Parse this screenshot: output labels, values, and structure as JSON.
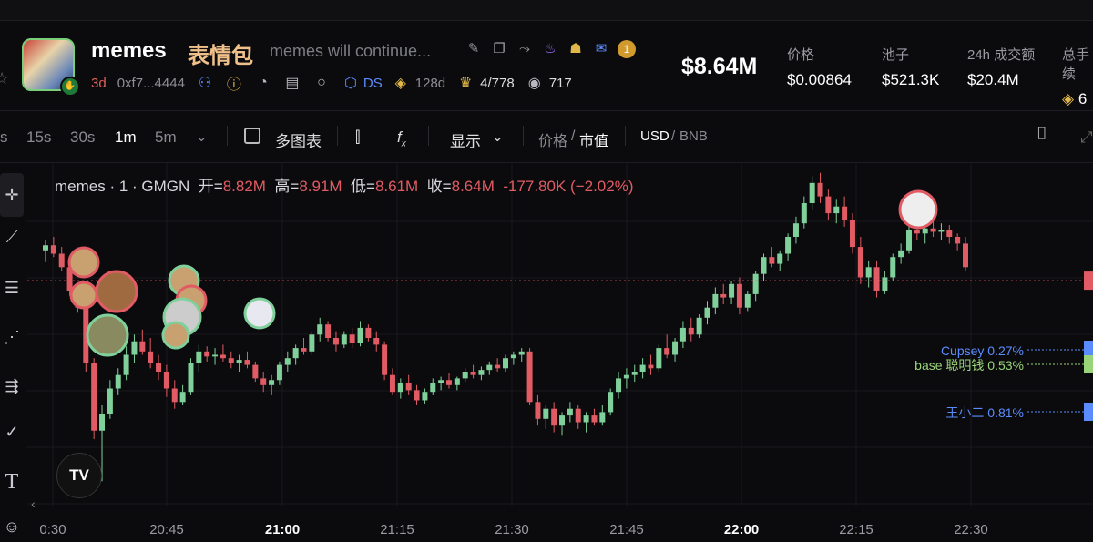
{
  "header": {
    "name": "memes",
    "cn_name": "表情包",
    "description": "memes will continue...",
    "age": "3d",
    "address": "0xf7...4444",
    "ds_label": "DS",
    "days": "128d",
    "rank": "4/778",
    "views": "717",
    "badge_count": "1",
    "market_cap": "$8.64M",
    "stats": [
      {
        "label": "价格",
        "value": "$0.00864"
      },
      {
        "label": "池子",
        "value": "$521.3K"
      },
      {
        "label": "24h 成交额",
        "value": "$20.4M"
      },
      {
        "label": "总手续",
        "value": "6"
      }
    ]
  },
  "toolbar": {
    "intervals": [
      "s",
      "15s",
      "30s",
      "1m",
      "5m"
    ],
    "active_interval": "1m",
    "multi_chart": "多图表",
    "fx": "f",
    "display": "显示",
    "price_label": "价格",
    "slash1": "/",
    "mcap_label": "市值",
    "currency": "USD",
    "slash2": "/",
    "currency_alt": "BNB"
  },
  "legend": {
    "symbol": "memes · 1 · GMGN",
    "open_label": "开=",
    "open": "8.82M",
    "high_label": "高=",
    "high": "8.91M",
    "low_label": "低=",
    "low": "8.61M",
    "close_label": "收=",
    "close": "8.64M",
    "change": "-177.80K (−2.02%)"
  },
  "right_labels": [
    {
      "text": "Cupsey 0.27%",
      "color": "#5b8cff"
    },
    {
      "text": "base 聪明钱 0.53%",
      "color": "#9ad47a"
    },
    {
      "text": "王小二 0.81%",
      "color": "#5b8cff"
    }
  ],
  "tv_logo": "TV",
  "chart_data": {
    "type": "candlestick",
    "x_ticks": [
      "0:30",
      "20:45",
      "21:00",
      "21:15",
      "21:30",
      "21:45",
      "22:00",
      "22:15",
      "22:30"
    ],
    "bold_ticks": [
      "21:00",
      "22:00"
    ],
    "y_range": [
      7.3,
      9.3
    ],
    "colors": {
      "up": "#7fd09a",
      "down": "#e05b63"
    },
    "candles": [
      [
        8.82,
        8.88,
        8.75,
        8.85
      ],
      [
        8.85,
        8.9,
        8.78,
        8.8
      ],
      [
        8.8,
        8.84,
        8.7,
        8.72
      ],
      [
        8.72,
        8.76,
        8.55,
        8.58
      ],
      [
        8.58,
        8.62,
        8.45,
        8.48
      ],
      [
        8.48,
        8.52,
        8.1,
        8.15
      ],
      [
        8.15,
        8.18,
        7.7,
        7.75
      ],
      [
        7.75,
        7.9,
        7.45,
        7.85
      ],
      [
        7.85,
        8.05,
        7.82,
        8.0
      ],
      [
        8.0,
        8.12,
        7.96,
        8.08
      ],
      [
        8.08,
        8.25,
        8.05,
        8.2
      ],
      [
        8.2,
        8.32,
        8.15,
        8.28
      ],
      [
        8.28,
        8.35,
        8.2,
        8.22
      ],
      [
        8.22,
        8.3,
        8.12,
        8.15
      ],
      [
        8.15,
        8.2,
        8.05,
        8.1
      ],
      [
        8.1,
        8.14,
        7.95,
        8.0
      ],
      [
        8.0,
        8.05,
        7.88,
        7.92
      ],
      [
        7.92,
        8.02,
        7.9,
        7.98
      ],
      [
        7.98,
        8.18,
        7.96,
        8.15
      ],
      [
        8.15,
        8.26,
        8.1,
        8.22
      ],
      [
        8.22,
        8.25,
        8.16,
        8.19
      ],
      [
        8.19,
        8.24,
        8.14,
        8.2
      ],
      [
        8.2,
        8.26,
        8.16,
        8.18
      ],
      [
        8.18,
        8.22,
        8.12,
        8.15
      ],
      [
        8.15,
        8.2,
        8.1,
        8.17
      ],
      [
        8.17,
        8.22,
        8.12,
        8.14
      ],
      [
        8.14,
        8.16,
        8.04,
        8.06
      ],
      [
        8.06,
        8.1,
        7.98,
        8.02
      ],
      [
        8.02,
        8.08,
        7.96,
        8.05
      ],
      [
        8.05,
        8.16,
        8.02,
        8.14
      ],
      [
        8.14,
        8.22,
        8.1,
        8.18
      ],
      [
        8.18,
        8.26,
        8.14,
        8.24
      ],
      [
        8.24,
        8.3,
        8.2,
        8.22
      ],
      [
        8.22,
        8.34,
        8.2,
        8.32
      ],
      [
        8.32,
        8.42,
        8.28,
        8.38
      ],
      [
        8.38,
        8.4,
        8.28,
        8.3
      ],
      [
        8.3,
        8.34,
        8.22,
        8.26
      ],
      [
        8.26,
        8.34,
        8.24,
        8.32
      ],
      [
        8.32,
        8.36,
        8.24,
        8.27
      ],
      [
        8.27,
        8.4,
        8.25,
        8.36
      ],
      [
        8.36,
        8.38,
        8.28,
        8.3
      ],
      [
        8.3,
        8.34,
        8.22,
        8.26
      ],
      [
        8.26,
        8.28,
        8.05,
        8.08
      ],
      [
        8.08,
        8.12,
        7.96,
        7.98
      ],
      [
        7.98,
        8.06,
        7.94,
        8.03
      ],
      [
        8.03,
        8.08,
        7.96,
        7.99
      ],
      [
        7.99,
        8.02,
        7.9,
        7.93
      ],
      [
        7.93,
        8.0,
        7.91,
        7.98
      ],
      [
        7.98,
        8.06,
        7.96,
        8.03
      ],
      [
        8.03,
        8.07,
        7.99,
        8.05
      ],
      [
        8.05,
        8.09,
        8.0,
        8.02
      ],
      [
        8.02,
        8.07,
        7.99,
        8.06
      ],
      [
        8.06,
        8.12,
        8.04,
        8.1
      ],
      [
        8.1,
        8.14,
        8.06,
        8.08
      ],
      [
        8.08,
        8.13,
        8.05,
        8.11
      ],
      [
        8.11,
        8.16,
        8.08,
        8.14
      ],
      [
        8.14,
        8.18,
        8.1,
        8.12
      ],
      [
        8.12,
        8.2,
        8.1,
        8.18
      ],
      [
        8.18,
        8.22,
        8.14,
        8.2
      ],
      [
        8.2,
        8.24,
        8.16,
        8.22
      ],
      [
        8.22,
        8.24,
        7.9,
        7.92
      ],
      [
        7.92,
        7.96,
        7.78,
        7.82
      ],
      [
        7.82,
        7.9,
        7.76,
        7.88
      ],
      [
        7.88,
        7.92,
        7.74,
        7.78
      ],
      [
        7.78,
        7.86,
        7.72,
        7.84
      ],
      [
        7.84,
        7.92,
        7.8,
        7.88
      ],
      [
        7.88,
        7.9,
        7.76,
        7.8
      ],
      [
        7.8,
        7.86,
        7.74,
        7.84
      ],
      [
        7.84,
        7.88,
        7.78,
        7.8
      ],
      [
        7.8,
        7.9,
        7.78,
        7.86
      ],
      [
        7.86,
        8.0,
        7.84,
        7.98
      ],
      [
        7.98,
        8.1,
        7.94,
        8.06
      ],
      [
        8.06,
        8.12,
        8.0,
        8.08
      ],
      [
        8.08,
        8.14,
        8.04,
        8.1
      ],
      [
        8.1,
        8.18,
        8.06,
        8.14
      ],
      [
        8.14,
        8.2,
        8.08,
        8.12
      ],
      [
        8.12,
        8.26,
        8.1,
        8.24
      ],
      [
        8.24,
        8.32,
        8.18,
        8.2
      ],
      [
        8.2,
        8.3,
        8.16,
        8.28
      ],
      [
        8.28,
        8.4,
        8.24,
        8.36
      ],
      [
        8.36,
        8.42,
        8.28,
        8.32
      ],
      [
        8.32,
        8.44,
        8.3,
        8.42
      ],
      [
        8.42,
        8.52,
        8.38,
        8.48
      ],
      [
        8.48,
        8.6,
        8.44,
        8.56
      ],
      [
        8.56,
        8.62,
        8.5,
        8.54
      ],
      [
        8.54,
        8.64,
        8.5,
        8.62
      ],
      [
        8.62,
        8.66,
        8.44,
        8.48
      ],
      [
        8.48,
        8.58,
        8.46,
        8.56
      ],
      [
        8.56,
        8.7,
        8.52,
        8.68
      ],
      [
        8.68,
        8.8,
        8.64,
        8.78
      ],
      [
        8.78,
        8.84,
        8.72,
        8.74
      ],
      [
        8.74,
        8.82,
        8.7,
        8.8
      ],
      [
        8.8,
        8.92,
        8.76,
        8.9
      ],
      [
        8.9,
        9.02,
        8.86,
        8.98
      ],
      [
        8.98,
        9.14,
        8.95,
        9.1
      ],
      [
        9.1,
        9.26,
        9.06,
        9.22
      ],
      [
        9.22,
        9.28,
        9.1,
        9.14
      ],
      [
        9.14,
        9.18,
        9.0,
        9.04
      ],
      [
        9.04,
        9.12,
        8.98,
        9.08
      ],
      [
        9.08,
        9.14,
        8.96,
        9.0
      ],
      [
        9.0,
        9.04,
        8.8,
        8.84
      ],
      [
        8.84,
        8.9,
        8.62,
        8.66
      ],
      [
        8.66,
        8.76,
        8.6,
        8.72
      ],
      [
        8.72,
        8.76,
        8.54,
        8.58
      ],
      [
        8.58,
        8.7,
        8.56,
        8.66
      ],
      [
        8.66,
        8.8,
        8.64,
        8.78
      ],
      [
        8.78,
        8.86,
        8.74,
        8.82
      ],
      [
        8.82,
        8.96,
        8.8,
        8.94
      ],
      [
        8.94,
        9.0,
        8.88,
        8.92
      ],
      [
        8.92,
        8.98,
        8.86,
        8.95
      ],
      [
        8.95,
        9.0,
        8.9,
        8.93
      ],
      [
        8.93,
        8.98,
        8.88,
        8.94
      ],
      [
        8.94,
        8.97,
        8.86,
        8.9
      ],
      [
        8.9,
        8.92,
        8.82,
        8.86
      ],
      [
        8.86,
        8.9,
        8.7,
        8.72
      ]
    ],
    "last_price": 8.64
  }
}
